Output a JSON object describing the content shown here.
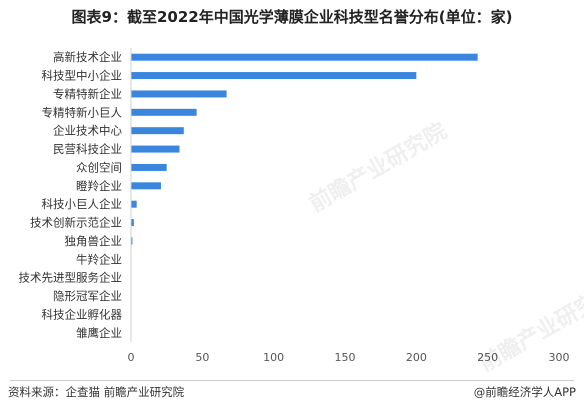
{
  "header": {
    "title": "图表9：截至2022年中国光学薄膜企业科技型名誉分布(单位：家)"
  },
  "footer": {
    "source": "资料来源：企查猫 前瞻产业研究院",
    "credit": "@前瞻经济学人APP"
  },
  "watermark": {
    "text": "前瞻产业研究院"
  },
  "colors": {
    "bar": "#3b86dd"
  },
  "chart_data": {
    "type": "bar",
    "orientation": "horizontal",
    "title": "图表9：截至2022年中国光学薄膜企业科技型名誉分布(单位：家)",
    "categories": [
      "高新技术企业",
      "科技型中小企业",
      "专精特新企业",
      "专精特新小巨人",
      "企业技术中心",
      "民营科技企业",
      "众创空间",
      "瞪羚企业",
      "科技小巨人企业",
      "技术创新示范企业",
      "独角兽企业",
      "牛羚企业",
      "技术先进型服务企业",
      "隐形冠军企业",
      "科技企业孵化器",
      "雏鹰企业"
    ],
    "values": [
      243,
      200,
      67,
      46,
      37,
      34,
      25,
      21,
      4,
      2,
      1,
      0,
      0,
      0,
      0,
      0
    ],
    "xlim": [
      0,
      300
    ],
    "xticks": [
      0,
      50,
      100,
      150,
      200,
      250,
      300
    ],
    "grid": false,
    "legend": "none"
  }
}
